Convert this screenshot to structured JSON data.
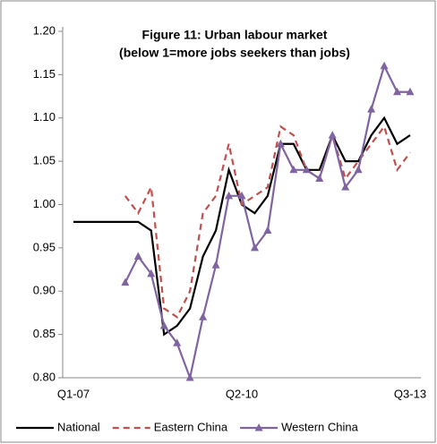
{
  "chart_data": {
    "type": "line",
    "title": "Figure 11: Urban labour market",
    "subtitle": "(below 1=more jobs seekers than jobs)",
    "categories": [
      "Q1-07",
      null,
      null,
      null,
      null,
      null,
      null,
      null,
      null,
      null,
      null,
      null,
      null,
      "Q2-10",
      null,
      null,
      null,
      null,
      null,
      null,
      null,
      null,
      null,
      null,
      null,
      null,
      "Q3-13"
    ],
    "series": [
      {
        "name": "National",
        "color": "#000000",
        "dash": "solid",
        "marker": "none",
        "values": [
          0.98,
          0.98,
          0.98,
          0.98,
          0.98,
          0.98,
          0.97,
          0.85,
          0.86,
          0.88,
          0.94,
          0.97,
          1.04,
          1.0,
          0.99,
          1.01,
          1.07,
          1.07,
          1.04,
          1.04,
          1.08,
          1.05,
          1.05,
          1.08,
          1.1,
          1.07,
          1.08
        ]
      },
      {
        "name": "Eastern China",
        "color": "#c0504d",
        "dash": "dashed",
        "marker": "none",
        "values": [
          null,
          null,
          null,
          null,
          1.01,
          0.99,
          1.02,
          0.88,
          0.87,
          0.9,
          0.99,
          1.01,
          1.07,
          1.0,
          1.01,
          1.02,
          1.09,
          1.08,
          1.04,
          1.03,
          1.08,
          1.03,
          1.05,
          1.07,
          1.09,
          1.04,
          1.06
        ]
      },
      {
        "name": "Western China",
        "color": "#8064a2",
        "dash": "solid",
        "marker": "triangle",
        "values": [
          null,
          null,
          null,
          null,
          0.91,
          0.94,
          0.92,
          0.86,
          0.84,
          0.8,
          0.87,
          0.93,
          1.01,
          1.01,
          0.95,
          0.97,
          1.07,
          1.04,
          1.04,
          1.03,
          1.08,
          1.02,
          1.04,
          1.11,
          1.16,
          1.13,
          1.13
        ]
      }
    ],
    "ylim": [
      0.8,
      1.2
    ],
    "yticks": [
      {
        "value": 0.8,
        "label": "0.80"
      },
      {
        "value": 0.85,
        "label": "0.85"
      },
      {
        "value": 0.9,
        "label": "0.90"
      },
      {
        "value": 0.95,
        "label": "0.95"
      },
      {
        "value": 1.0,
        "label": "1.00"
      },
      {
        "value": 1.05,
        "label": "1.05"
      },
      {
        "value": 1.1,
        "label": "1.10"
      },
      {
        "value": 1.15,
        "label": "1.15"
      },
      {
        "value": 1.2,
        "label": "1.20"
      }
    ],
    "legend": "bottom"
  }
}
